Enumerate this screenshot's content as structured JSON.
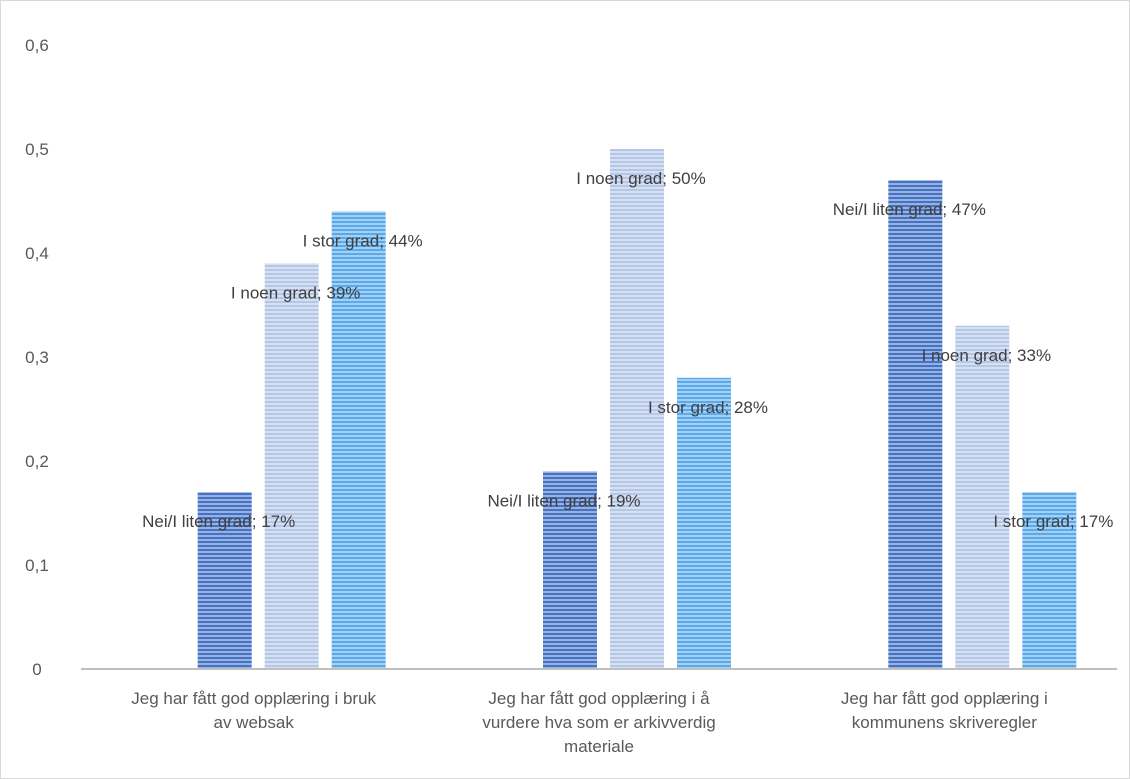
{
  "chart_data": {
    "type": "bar",
    "title": "",
    "xlabel": "",
    "ylabel": "",
    "ylim": [
      0,
      0.6
    ],
    "yticks": [
      "0",
      "0,1",
      "0,2",
      "0,3",
      "0,4",
      "0,5",
      "0,6"
    ],
    "grid": false,
    "legend": "none",
    "categories": [
      [
        "Jeg har fått god opplæring i bruk",
        "av websak"
      ],
      [
        "Jeg har fått god opplæring i å",
        "vurdere hva som er arkivverdig",
        "materiale"
      ],
      [
        "Jeg har fått god opplæring i",
        "kommunens skriveregler"
      ]
    ],
    "series": [
      {
        "name": "Nei/I liten grad",
        "color": "#4472c4",
        "values": [
          0.17,
          0.19,
          0.47
        ],
        "data_labels": [
          "Nei/I liten grad; 17%",
          "Nei/I liten grad; 19%",
          "Nei/I liten grad; 47%"
        ]
      },
      {
        "name": "I noen grad",
        "color": "#b4c7e7",
        "values": [
          0.39,
          0.5,
          0.33
        ],
        "data_labels": [
          "I noen grad; 39%",
          "I noen grad; 50%",
          "I noen grad; 33%"
        ]
      },
      {
        "name": "I stor grad",
        "color": "#5aaaeb",
        "values": [
          0.44,
          0.28,
          0.17
        ],
        "data_labels": [
          "I stor grad; 44%",
          "I stor grad; 28%",
          "I stor grad; 17%"
        ]
      }
    ]
  }
}
